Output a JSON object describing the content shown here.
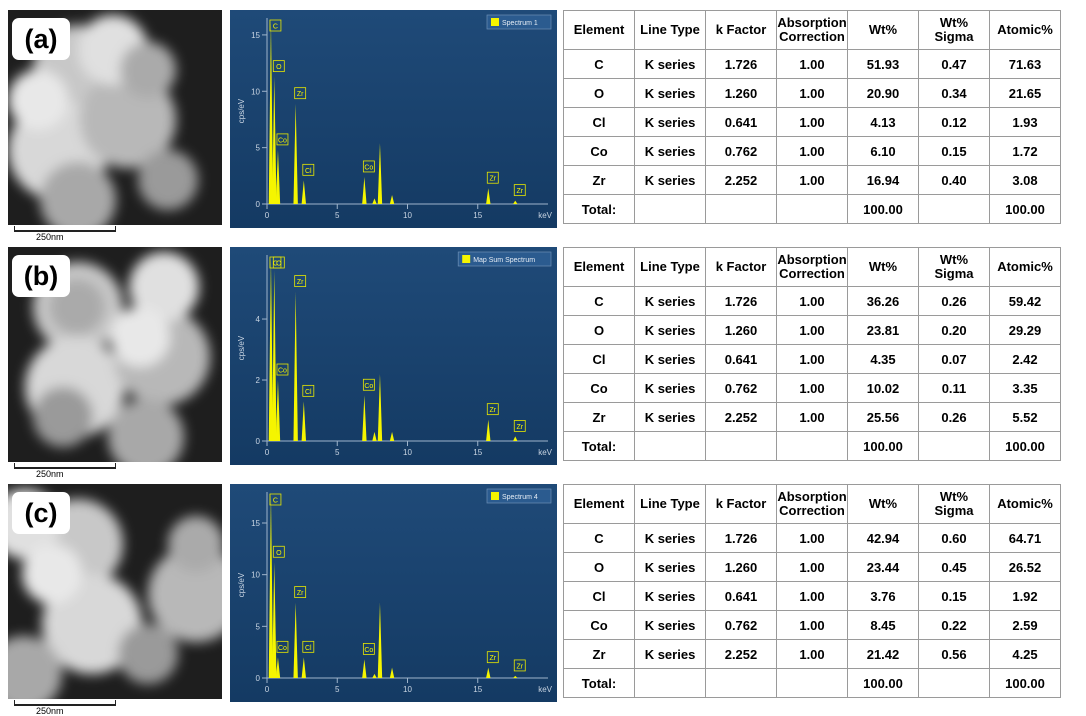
{
  "panels": [
    {
      "label": "(a)",
      "scale_bar": "250nm",
      "spectrum": {
        "type": "spectrum",
        "legend": "Spectrum 1",
        "ylabel": "cps/eV",
        "xlabel": "keV",
        "xlim": [
          0,
          20
        ],
        "xticks": [
          0,
          5,
          10,
          15
        ],
        "ylim": [
          0,
          16.5
        ],
        "yticks": [
          0,
          5,
          10,
          15
        ],
        "peaks": [
          {
            "label": "C",
            "x": 0.28,
            "y": 16.3
          },
          {
            "label": "O",
            "x": 0.52,
            "y": 11.3
          },
          {
            "label": "Co",
            "x": 0.78,
            "y": 4.8
          },
          {
            "label": "Zr",
            "x": 2.04,
            "y": 8.9
          },
          {
            "label": "Cl",
            "x": 2.62,
            "y": 2.1
          },
          {
            "label": "Co",
            "x": 6.93,
            "y": 2.4
          },
          {
            "x": 7.65,
            "y": 0.5
          },
          {
            "x": 8.04,
            "y": 5.4
          },
          {
            "x": 8.9,
            "y": 0.8
          },
          {
            "label": "Zr",
            "x": 15.75,
            "y": 1.4
          },
          {
            "label": "Zr",
            "x": 17.67,
            "y": 0.3
          }
        ]
      },
      "table": {
        "header": [
          "Element",
          "Line Type",
          "k Factor",
          "Absorption Correction",
          "Wt%",
          "Wt% Sigma",
          "Atomic%"
        ],
        "rows": [
          [
            "C",
            "K series",
            "1.726",
            "1.00",
            "51.93",
            "0.47",
            "71.63"
          ],
          [
            "O",
            "K series",
            "1.260",
            "1.00",
            "20.90",
            "0.34",
            "21.65"
          ],
          [
            "Cl",
            "K series",
            "0.641",
            "1.00",
            "4.13",
            "0.12",
            "1.93"
          ],
          [
            "Co",
            "K series",
            "0.762",
            "1.00",
            "6.10",
            "0.15",
            "1.72"
          ],
          [
            "Zr",
            "K series",
            "2.252",
            "1.00",
            "16.94",
            "0.40",
            "3.08"
          ],
          [
            "Total:",
            "",
            "",
            "",
            "100.00",
            "",
            "100.00"
          ]
        ]
      }
    },
    {
      "label": "(b)",
      "scale_bar": "250nm",
      "spectrum": {
        "type": "spectrum",
        "legend": "Map Sum Spectrum",
        "ylabel": "cps/eV",
        "xlabel": "keV",
        "xlim": [
          0,
          20
        ],
        "xticks": [
          0,
          5,
          10,
          15
        ],
        "ylim": [
          0,
          6.1
        ],
        "yticks": [
          0,
          2,
          4
        ],
        "peaks": [
          {
            "label": "C",
            "x": 0.28,
            "y": 6.0
          },
          {
            "label": "O",
            "x": 0.52,
            "y": 5.6
          },
          {
            "label": "Co",
            "x": 0.78,
            "y": 2.0
          },
          {
            "label": "Zr",
            "x": 2.04,
            "y": 4.9
          },
          {
            "label": "Cl",
            "x": 2.62,
            "y": 1.3
          },
          {
            "label": "Co",
            "x": 6.93,
            "y": 1.5
          },
          {
            "x": 7.65,
            "y": 0.3
          },
          {
            "x": 8.04,
            "y": 2.2
          },
          {
            "x": 8.9,
            "y": 0.3
          },
          {
            "label": "Zr",
            "x": 15.75,
            "y": 0.7
          },
          {
            "label": "Zr",
            "x": 17.67,
            "y": 0.15
          }
        ]
      },
      "table": {
        "header": [
          "Element",
          "Line Type",
          "k Factor",
          "Absorption Correction",
          "Wt%",
          "Wt% Sigma",
          "Atomic%"
        ],
        "rows": [
          [
            "C",
            "K series",
            "1.726",
            "1.00",
            "36.26",
            "0.26",
            "59.42"
          ],
          [
            "O",
            "K series",
            "1.260",
            "1.00",
            "23.81",
            "0.20",
            "29.29"
          ],
          [
            "Cl",
            "K series",
            "0.641",
            "1.00",
            "4.35",
            "0.07",
            "2.42"
          ],
          [
            "Co",
            "K series",
            "0.762",
            "1.00",
            "10.02",
            "0.11",
            "3.35"
          ],
          [
            "Zr",
            "K series",
            "2.252",
            "1.00",
            "25.56",
            "0.26",
            "5.52"
          ],
          [
            "Total:",
            "",
            "",
            "",
            "100.00",
            "",
            "100.00"
          ]
        ]
      }
    },
    {
      "label": "(c)",
      "scale_bar": "250nm",
      "spectrum": {
        "type": "spectrum",
        "legend": "Spectrum 4",
        "ylabel": "cps/eV",
        "xlabel": "keV",
        "xlim": [
          0,
          20
        ],
        "xticks": [
          0,
          5,
          10,
          15
        ],
        "ylim": [
          0,
          18
        ],
        "yticks": [
          0,
          5,
          10,
          15
        ],
        "peaks": [
          {
            "label": "C",
            "x": 0.28,
            "y": 18
          },
          {
            "label": "O",
            "x": 0.52,
            "y": 11.2
          },
          {
            "label": "Co",
            "x": 0.78,
            "y": 2.0
          },
          {
            "label": "Zr",
            "x": 2.04,
            "y": 7.3
          },
          {
            "label": "Cl",
            "x": 2.62,
            "y": 2.0
          },
          {
            "label": "Co",
            "x": 6.93,
            "y": 1.8
          },
          {
            "x": 7.65,
            "y": 0.4
          },
          {
            "x": 8.04,
            "y": 7.3
          },
          {
            "x": 8.9,
            "y": 1.0
          },
          {
            "label": "Zr",
            "x": 15.75,
            "y": 1.0
          },
          {
            "label": "Zr",
            "x": 17.67,
            "y": 0.2
          }
        ]
      },
      "table": {
        "header": [
          "Element",
          "Line Type",
          "k Factor",
          "Absorption Correction",
          "Wt%",
          "Wt% Sigma",
          "Atomic%"
        ],
        "rows": [
          [
            "C",
            "K series",
            "1.726",
            "1.00",
            "42.94",
            "0.60",
            "64.71"
          ],
          [
            "O",
            "K series",
            "1.260",
            "1.00",
            "23.44",
            "0.45",
            "26.52"
          ],
          [
            "Cl",
            "K series",
            "0.641",
            "1.00",
            "3.76",
            "0.15",
            "1.92"
          ],
          [
            "Co",
            "K series",
            "0.762",
            "1.00",
            "8.45",
            "0.22",
            "2.59"
          ],
          [
            "Zr",
            "K series",
            "2.252",
            "1.00",
            "21.42",
            "0.56",
            "4.25"
          ],
          [
            "Total:",
            "",
            "",
            "",
            "100.00",
            "",
            "100.00"
          ]
        ]
      }
    }
  ]
}
